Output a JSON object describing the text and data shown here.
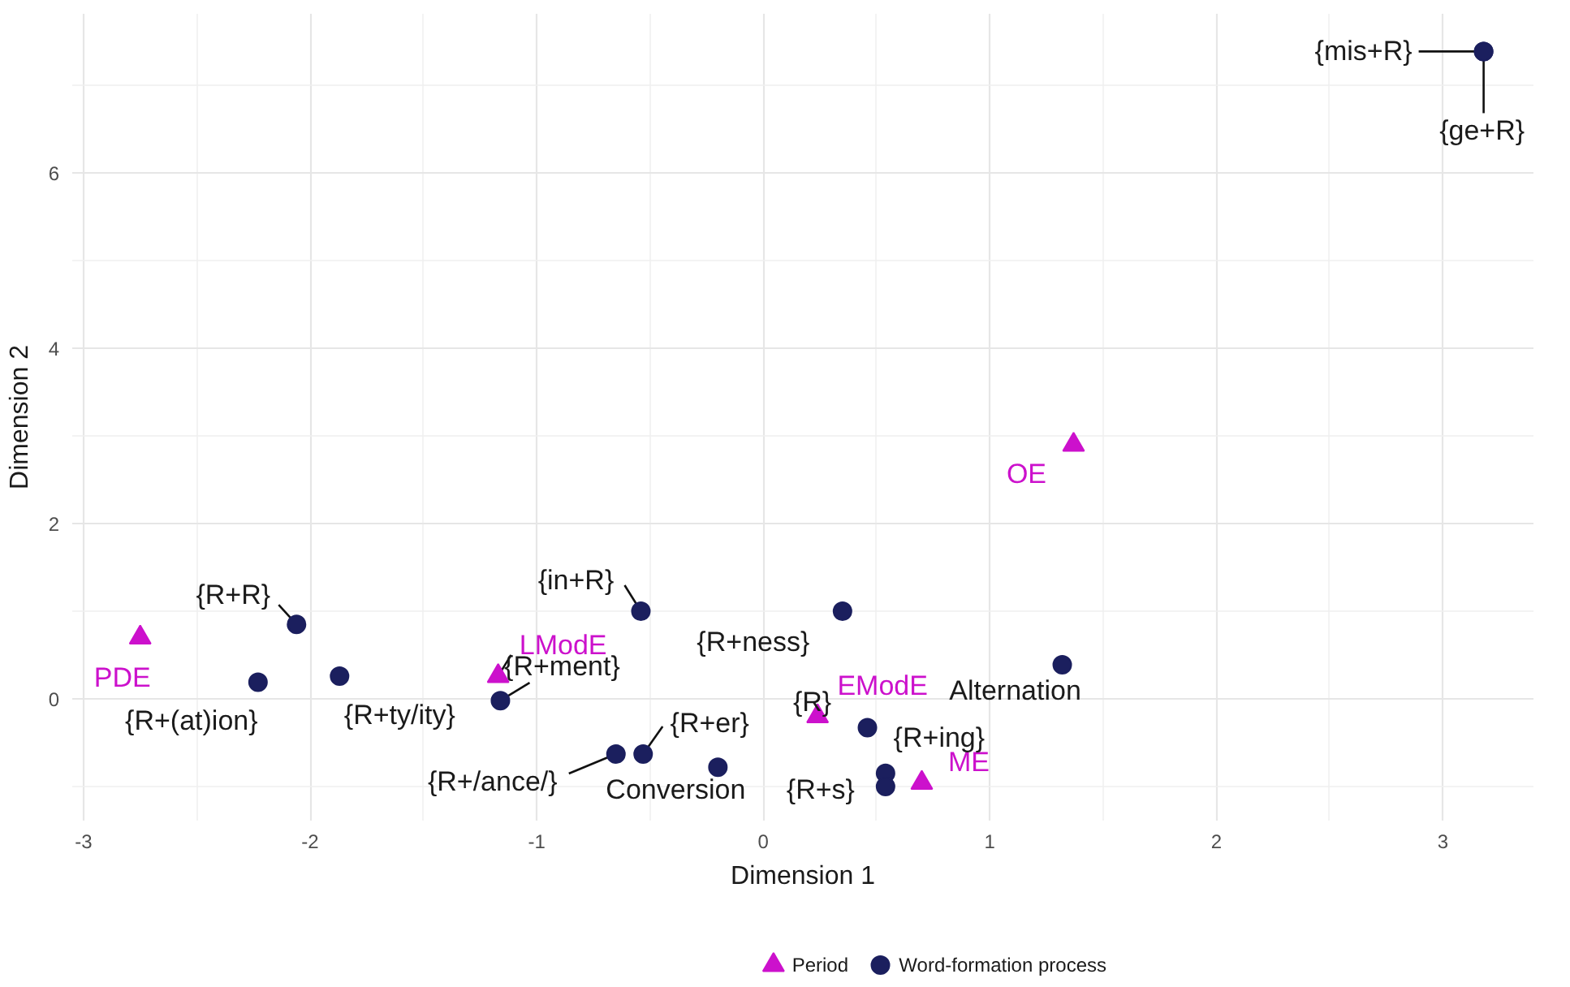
{
  "chart_data": {
    "type": "scatter",
    "xlabel": "Dimension 1",
    "ylabel": "Dimension 2",
    "xlim": [
      -3.05,
      3.4
    ],
    "ylim": [
      -1.39,
      7.82
    ],
    "xticks": [
      -3,
      -2,
      -1,
      0,
      1,
      2,
      3
    ],
    "yticks": [
      0,
      2,
      4,
      6
    ],
    "grid": true,
    "legend": "bottom",
    "series": [
      {
        "name": "Period",
        "color": "#cc11cc",
        "marker": "triangle",
        "x": [
          -2.75,
          -1.17,
          0.24,
          0.7,
          1.37
        ],
        "values": [
          0.7,
          0.26,
          -0.2,
          -0.96,
          2.9
        ],
        "value_labels": [
          "PDE",
          "LModE",
          "EModE",
          "ME",
          "OE"
        ]
      },
      {
        "name": "Word-formation process",
        "color": "#1b1f5e",
        "marker": "circle",
        "x": [
          3.18,
          3.18,
          -2.06,
          -2.23,
          -1.87,
          -1.16,
          -0.54,
          0.35,
          1.32,
          -0.65,
          -0.53,
          -0.2,
          0.46,
          0.54,
          0.54
        ],
        "values": [
          7.39,
          7.39,
          0.85,
          0.19,
          0.26,
          -0.02,
          1.0,
          1.0,
          0.39,
          -0.63,
          -0.63,
          -0.78,
          -0.33,
          -0.85,
          -1.0
        ],
        "value_labels": [
          "{mis+R}",
          "{ge+R}",
          "{R+R}",
          "{R+(at)ion}",
          "{R+ty/ity}",
          "{R+ment}",
          "{in+R}",
          "{R+ness}",
          "Alternation",
          "{R+/ance/}",
          "{R+er}",
          "Conversion",
          "{R}",
          "{R+ing}",
          "{R+s}"
        ]
      }
    ]
  }
}
